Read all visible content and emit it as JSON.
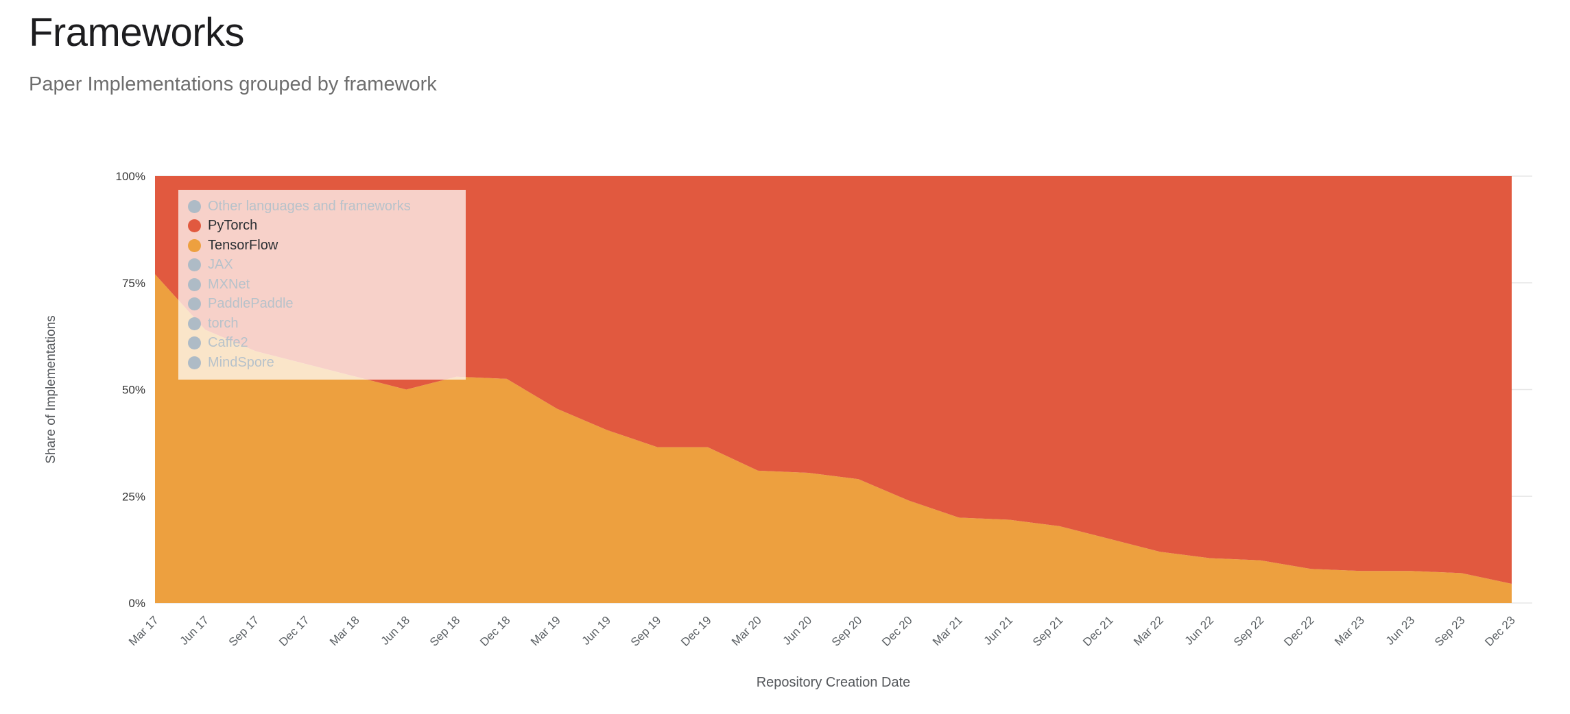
{
  "page": {
    "title": "Frameworks",
    "subtitle": "Paper Implementations grouped by framework"
  },
  "chart_data": {
    "type": "area",
    "stacked": true,
    "normalized": "percent",
    "title": "Frameworks",
    "xlabel": "Repository Creation Date",
    "ylabel": "Share of Implementations",
    "ylim": [
      0,
      100
    ],
    "ytick_values": [
      0,
      25,
      50,
      75,
      100
    ],
    "yticks": [
      "0%",
      "25%",
      "50%",
      "75%",
      "100%"
    ],
    "grid": "horizontal",
    "legend_position": "top-left-overlay",
    "x": [
      "Mar 17",
      "Jun 17",
      "Sep 17",
      "Dec 17",
      "Mar 18",
      "Jun 18",
      "Sep 18",
      "Dec 18",
      "Mar 19",
      "Jun 19",
      "Sep 19",
      "Dec 19",
      "Mar 20",
      "Jun 20",
      "Sep 20",
      "Dec 20",
      "Mar 21",
      "Jun 21",
      "Sep 21",
      "Dec 21",
      "Mar 22",
      "Jun 22",
      "Sep 22",
      "Dec 22",
      "Mar 23",
      "Jun 23",
      "Sep 23",
      "Dec 23"
    ],
    "series": [
      {
        "name": "TensorFlow",
        "color": "#eda03f",
        "values": [
          77,
          64,
          59,
          56,
          53,
          50,
          53,
          52.5,
          45.5,
          40.5,
          36.5,
          36.5,
          31,
          30.5,
          29,
          24,
          20,
          19.5,
          18,
          15,
          12,
          10.5,
          10,
          8,
          7.5,
          7.5,
          7,
          4.5
        ]
      },
      {
        "name": "PyTorch",
        "color": "#e1593f",
        "values": [
          23,
          36,
          41,
          44,
          47,
          50,
          47,
          47.5,
          54.5,
          59.5,
          63.5,
          63.5,
          69,
          69.5,
          71,
          76,
          80,
          80.5,
          82,
          85,
          88,
          89.5,
          90,
          92,
          92.5,
          92.5,
          93,
          95.5
        ]
      }
    ]
  },
  "legend": {
    "items": [
      {
        "label": "Other languages and frameworks",
        "active": false,
        "color": "#aebbc6"
      },
      {
        "label": "PyTorch",
        "active": true,
        "color": "#e1593f"
      },
      {
        "label": "TensorFlow",
        "active": true,
        "color": "#eda03f"
      },
      {
        "label": "JAX",
        "active": false,
        "color": "#aebbc6"
      },
      {
        "label": "MXNet",
        "active": false,
        "color": "#aebbc6"
      },
      {
        "label": "PaddlePaddle",
        "active": false,
        "color": "#aebbc6"
      },
      {
        "label": "torch",
        "active": false,
        "color": "#aebbc6"
      },
      {
        "label": "Caffe2",
        "active": false,
        "color": "#aebbc6"
      },
      {
        "label": "MindSpore",
        "active": false,
        "color": "#aebbc6"
      }
    ]
  },
  "colors": {
    "gridline": "#e7e7e7",
    "x_tick_text": "#5a5f63",
    "y_tick_text": "#333333",
    "axis_title_text": "#53565a"
  }
}
